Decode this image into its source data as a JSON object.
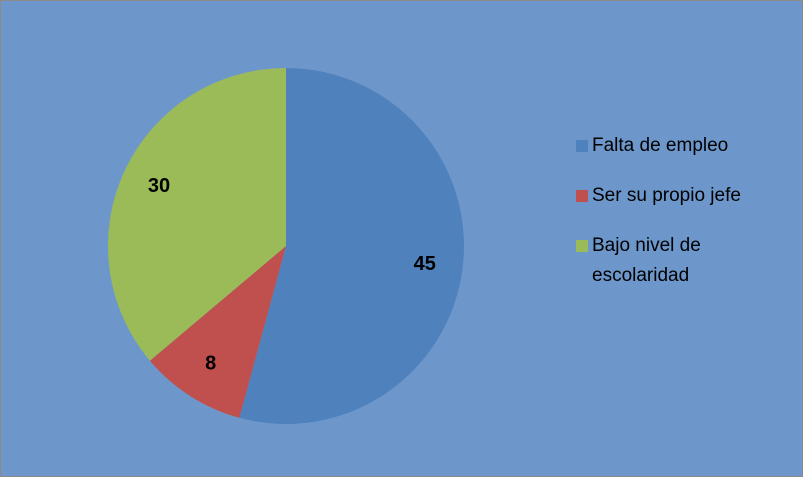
{
  "chart_data": {
    "type": "pie",
    "categories": [
      "Falta de empleo",
      "Ser su propio jefe",
      "Bajo nivel de escolaridad"
    ],
    "values": [
      45,
      8,
      30
    ],
    "colors": [
      "#4f81bd",
      "#c0504d",
      "#9bbb59"
    ],
    "legend": "right"
  }
}
